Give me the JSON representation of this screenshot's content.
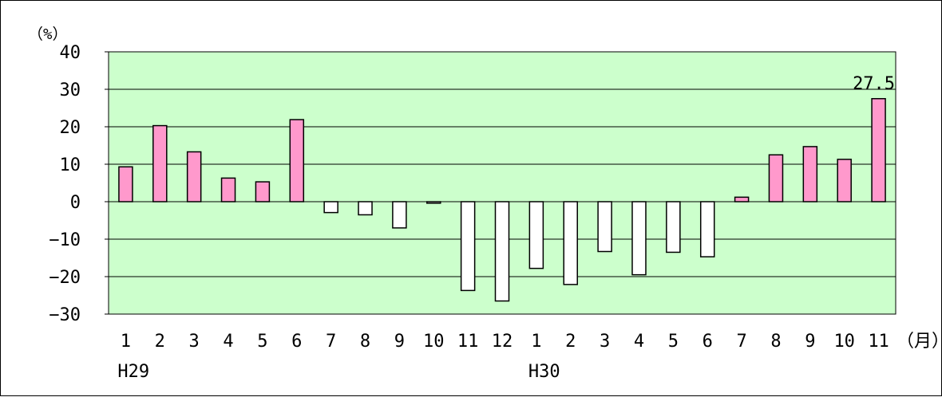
{
  "chart_data": {
    "type": "bar",
    "title": "",
    "ylabel": "（%）",
    "xlabel": "（月）",
    "ylim": [
      -30,
      40
    ],
    "yticks": [
      40,
      30,
      20,
      10,
      0,
      -10,
      -20,
      -30
    ],
    "ytick_labels": [
      "40",
      "30",
      "20",
      "10",
      "0",
      "−10",
      "−20",
      "−30"
    ],
    "categories": [
      "1",
      "2",
      "3",
      "4",
      "5",
      "6",
      "7",
      "8",
      "9",
      "10",
      "11",
      "12",
      "1",
      "2",
      "3",
      "4",
      "5",
      "6",
      "7",
      "8",
      "9",
      "10",
      "11"
    ],
    "values": [
      9.3,
      20.3,
      13.3,
      6.3,
      5.3,
      21.9,
      -2.9,
      -3.5,
      -7.0,
      -0.4,
      -23.7,
      -26.5,
      -17.8,
      -22.1,
      -13.3,
      -19.5,
      -13.5,
      -14.7,
      1.2,
      12.5,
      14.7,
      11.3,
      27.5
    ],
    "year_labels": [
      {
        "index": 0,
        "text": "H29"
      },
      {
        "index": 12,
        "text": "H30"
      }
    ],
    "data_labels": [
      {
        "index": 22,
        "text": "27.5"
      }
    ],
    "positive_color": "#ff99cc",
    "negative_color": "#ffffff",
    "plot_background": "#ccffcc",
    "grid": true,
    "legend": "none"
  }
}
